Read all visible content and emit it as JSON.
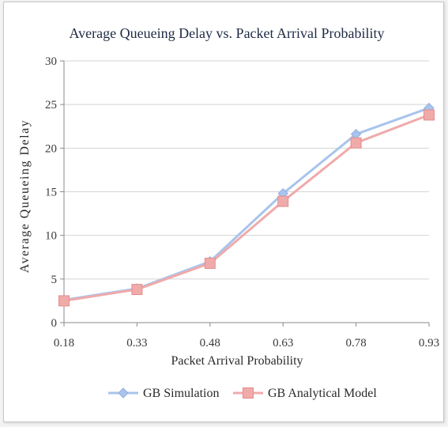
{
  "chart_data": {
    "type": "line",
    "title": "Average Queueing Delay vs. Packet Arrival Probability",
    "xlabel": "Packet Arrival Probability",
    "ylabel": "Average Queueing Delay",
    "categories": [
      "0.18",
      "0.33",
      "0.48",
      "0.63",
      "0.78",
      "0.93"
    ],
    "ylim": [
      0,
      30
    ],
    "yticks": [
      "0",
      "5",
      "10",
      "15",
      "20",
      "25",
      "30"
    ],
    "grid": true,
    "legend_position": "bottom",
    "series": [
      {
        "name": "GB Simulation",
        "color": "#a9c4ec",
        "marker": "diamond",
        "values": [
          2.6,
          3.9,
          7.0,
          14.8,
          21.6,
          24.6
        ]
      },
      {
        "name": "GB Analytical Model",
        "color": "#f0aaaa",
        "marker": "square",
        "values": [
          2.5,
          3.8,
          6.8,
          13.9,
          20.6,
          23.8
        ]
      }
    ]
  }
}
